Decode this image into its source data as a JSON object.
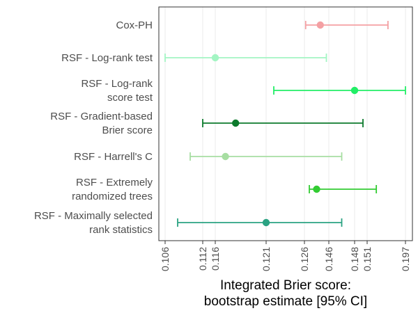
{
  "chart_data": {
    "type": "forest",
    "title": "",
    "xlabel": [
      "Integrated Brier score:",
      "bootstrap estimate [95% CI]"
    ],
    "ylabel": "",
    "x_ticks": [
      "0.106",
      "0.112",
      "0.116",
      "0.121",
      "0.126",
      "0.146",
      "0.148",
      "0.151",
      "0.197"
    ],
    "grid": true,
    "series": [
      {
        "name": [
          "Cox-PH"
        ],
        "estimate": 0.139,
        "ci_low": 0.127,
        "ci_high": 0.176,
        "color": "#f4a0a3"
      },
      {
        "name": [
          "RSF - Log-rank test"
        ],
        "estimate": 0.116,
        "ci_low": 0.106,
        "ci_high": 0.144,
        "color": "#a3f5c3"
      },
      {
        "name": [
          "RSF - Log-rank",
          "score test"
        ],
        "estimate": 0.148,
        "ci_low": 0.122,
        "ci_high": 0.197,
        "color": "#22ee66"
      },
      {
        "name": [
          "RSF - Gradient-based",
          "Brier score"
        ],
        "estimate": 0.118,
        "ci_low": 0.112,
        "ci_high": 0.15,
        "color": "#0c7a2c"
      },
      {
        "name": [
          "RSF - Harrell's C"
        ],
        "estimate": 0.117,
        "ci_low": 0.11,
        "ci_high": 0.147,
        "color": "#a7dea2"
      },
      {
        "name": [
          "RSF - Extremely",
          "randomized trees"
        ],
        "estimate": 0.136,
        "ci_low": 0.13,
        "ci_high": 0.162,
        "color": "#33cc33"
      },
      {
        "name": [
          "RSF - Maximally selected",
          "rank statistics"
        ],
        "estimate": 0.121,
        "ci_low": 0.108,
        "ci_high": 0.147,
        "color": "#2aa282"
      }
    ]
  }
}
